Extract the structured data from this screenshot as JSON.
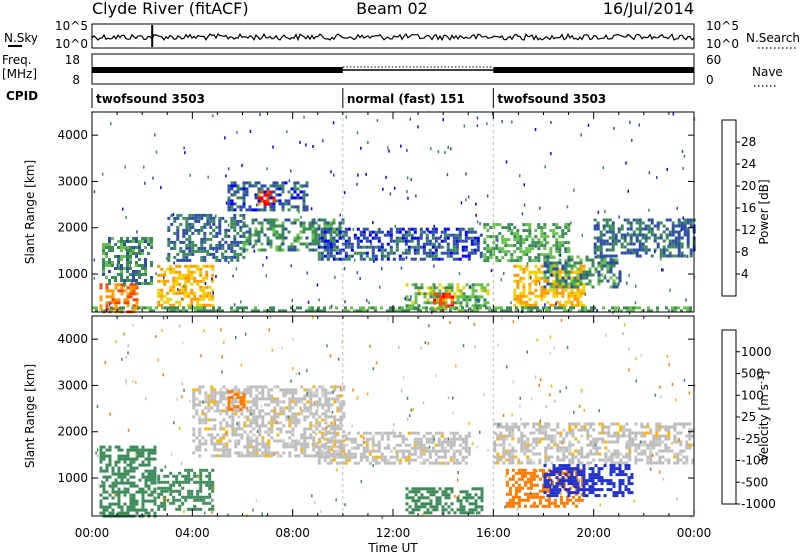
{
  "header": {
    "station": "Clyde River (fitACF)",
    "beam": "Beam 02",
    "date": "16/Jul/2014"
  },
  "side_labels": {
    "nsky": "N.Sky",
    "nsearch": "N.Search",
    "freq": "Freq.",
    "freq_unit": "[MHz]",
    "nave": "Nave",
    "cpid": "CPID"
  },
  "strip_ticks": {
    "nsky_top": "10^5",
    "nsky_bottom": "10^0",
    "nsearch_top": "10^5",
    "nsearch_bottom": "10^0",
    "freq_top": "18",
    "freq_bottom": "8",
    "nave_top": "60",
    "nave_bottom": "0"
  },
  "cpid_segments": [
    {
      "label": "twofsound 3503",
      "start_h": 0,
      "end_h": 10
    },
    {
      "label": "normal (fast) 151",
      "start_h": 10,
      "end_h": 16
    },
    {
      "label": "twofsound 3503",
      "start_h": 16,
      "end_h": 24
    }
  ],
  "colors": {
    "power_scale": [
      "#0000ff",
      "#2e4ea8",
      "#3c8a5a",
      "#66c24a",
      "#f0d000",
      "#ff9900",
      "#ff4400",
      "#ff0000"
    ],
    "velocity_scale": [
      "#ff0000",
      "#ff7a00",
      "#ffb400",
      "#bdbdbd",
      "#cfcfcf",
      "#66cc33",
      "#3d8c5a",
      "#2233cc"
    ],
    "axis": "#000000"
  },
  "chart_data": [
    {
      "type": "heatmap",
      "panel": "power",
      "ylabel": "Slant Range [km]",
      "ylim": [
        180,
        4500
      ],
      "yticks": [
        "1000",
        "2000",
        "3000",
        "4000"
      ],
      "xlim_hours": [
        0,
        24
      ],
      "colorbar": {
        "label": "Power [dB]",
        "ticks": [
          "4",
          "8",
          "12",
          "16",
          "20",
          "24",
          "28"
        ],
        "range": [
          0,
          30
        ]
      },
      "regions": [
        {
          "t0": 0.3,
          "t1": 1.8,
          "r0": 200,
          "r1": 800,
          "v": 24
        },
        {
          "t0": 0.4,
          "t1": 2.4,
          "r0": 800,
          "r1": 1800,
          "v": 10
        },
        {
          "t0": 2.6,
          "t1": 4.8,
          "r0": 300,
          "r1": 1200,
          "v": 20
        },
        {
          "t0": 3.0,
          "t1": 6.0,
          "r0": 1300,
          "r1": 2300,
          "v": 8
        },
        {
          "t0": 5.4,
          "t1": 8.6,
          "r0": 2400,
          "r1": 3000,
          "v": 6
        },
        {
          "t0": 6.6,
          "t1": 7.2,
          "r0": 2500,
          "r1": 2800,
          "v": 26
        },
        {
          "t0": 6.0,
          "t1": 10.0,
          "r0": 1500,
          "r1": 2200,
          "v": 10
        },
        {
          "t0": 9.0,
          "t1": 15.5,
          "r0": 1300,
          "r1": 2000,
          "v": 6
        },
        {
          "t0": 12.5,
          "t1": 15.8,
          "r0": 250,
          "r1": 800,
          "v": 14
        },
        {
          "t0": 13.6,
          "t1": 14.4,
          "r0": 250,
          "r1": 600,
          "v": 26
        },
        {
          "t0": 15.6,
          "t1": 19.0,
          "r0": 1300,
          "r1": 2100,
          "v": 12
        },
        {
          "t0": 16.8,
          "t1": 19.6,
          "r0": 300,
          "r1": 1200,
          "v": 20
        },
        {
          "t0": 18.0,
          "t1": 21.0,
          "r0": 700,
          "r1": 1400,
          "v": 10
        },
        {
          "t0": 20.0,
          "t1": 24.0,
          "r0": 1400,
          "r1": 2200,
          "v": 8
        },
        {
          "t0": 0.0,
          "t1": 24.0,
          "r0": 180,
          "r1": 300,
          "v": 12
        }
      ]
    },
    {
      "type": "heatmap",
      "panel": "velocity",
      "ylabel": "Slant Range [km]",
      "xlabel": "Time UT",
      "ylim": [
        180,
        4500
      ],
      "yticks": [
        "1000",
        "2000",
        "3000",
        "4000"
      ],
      "xticks": [
        "00:00",
        "04:00",
        "08:00",
        "12:00",
        "16:00",
        "20:00",
        "00:00"
      ],
      "xlim_hours": [
        0,
        24
      ],
      "colorbar": {
        "label": "Velocity [m s^-1]",
        "ticks": [
          "1000",
          "500",
          "100",
          "25",
          "-25",
          "-100",
          "-500",
          "-1000"
        ]
      },
      "regions": [
        {
          "t0": 0.3,
          "t1": 2.5,
          "r0": 200,
          "r1": 1700,
          "v": 200
        },
        {
          "t0": 2.6,
          "t1": 4.8,
          "r0": 300,
          "r1": 1200,
          "v": 200
        },
        {
          "t0": 4.0,
          "t1": 10.0,
          "r0": 1500,
          "r1": 3000,
          "v": 0
        },
        {
          "t0": 5.4,
          "t1": 6.0,
          "r0": 2500,
          "r1": 2900,
          "v": -150
        },
        {
          "t0": 9.0,
          "t1": 15.0,
          "r0": 1300,
          "r1": 2000,
          "v": 0
        },
        {
          "t0": 16.0,
          "t1": 24.0,
          "r0": 1300,
          "r1": 2200,
          "v": 0
        },
        {
          "t0": 16.5,
          "t1": 19.5,
          "r0": 400,
          "r1": 1200,
          "v": -200
        },
        {
          "t0": 18.0,
          "t1": 21.5,
          "r0": 600,
          "r1": 1300,
          "v": 600
        },
        {
          "t0": 12.5,
          "t1": 15.5,
          "r0": 250,
          "r1": 800,
          "v": 150
        }
      ]
    }
  ]
}
